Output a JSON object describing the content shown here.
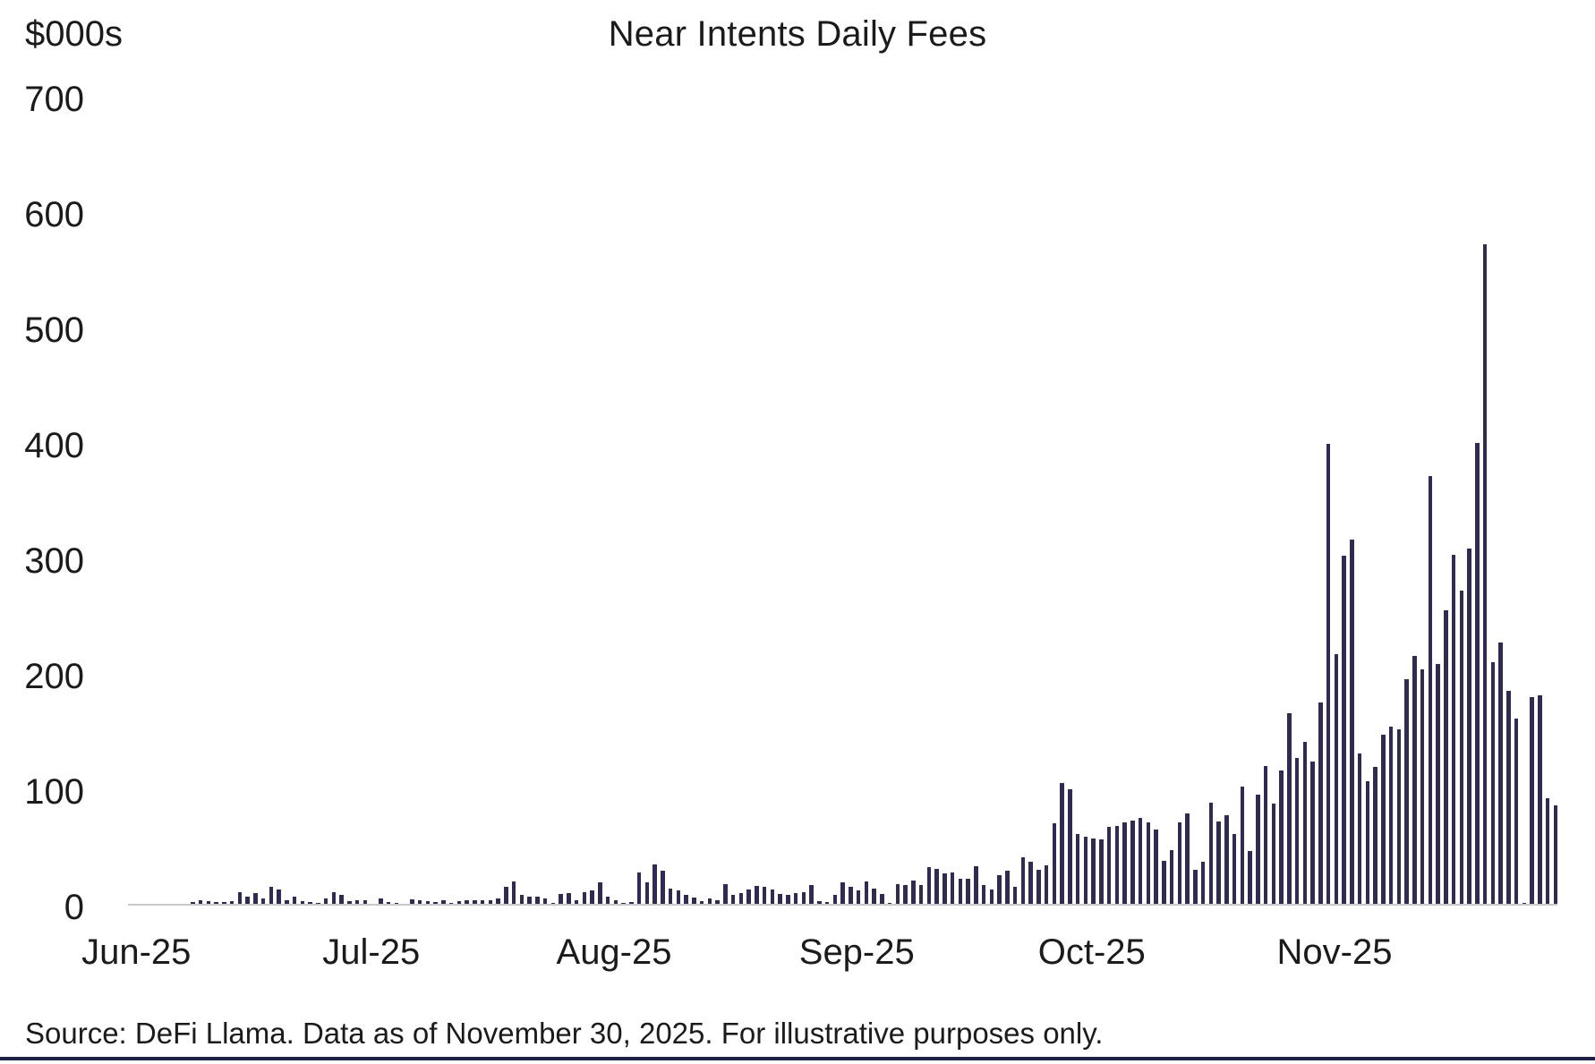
{
  "title": "Near Intents Daily Fees",
  "y_axis_unit": "$000s",
  "source_note": "Source: DeFi Llama. Data as of November 30, 2025. For illustrative purposes only.",
  "colors": {
    "bar": "#302b50",
    "axis_line": "#c9c9c9",
    "text": "#1b1b1b",
    "bottom_rule": "#1e2248",
    "background": "#ffffff"
  },
  "chart_data": {
    "type": "bar",
    "title": "Near Intents Daily Fees",
    "ylabel": "$000s",
    "xlabel": "",
    "ylim": [
      0,
      700
    ],
    "y_ticks": [
      0,
      100,
      200,
      300,
      400,
      500,
      600,
      700
    ],
    "grid": false,
    "legend": false,
    "series_name": "Daily fees ($000s)",
    "x_tick_labels": [
      "Jun-25",
      "Jul-25",
      "Aug-25",
      "Sep-25",
      "Oct-25",
      "Nov-25"
    ],
    "x_tick_day_index": [
      0,
      30,
      61,
      92,
      122,
      153
    ],
    "x_range_days": "Jun 1 2025 - Nov 30 2025",
    "values": [
      0.5,
      0.5,
      0.5,
      0.5,
      0.5,
      0.5,
      0.5,
      1,
      3,
      5,
      4,
      3,
      3,
      4,
      12,
      8,
      11,
      6,
      16,
      14,
      5,
      8,
      4,
      3,
      2,
      6,
      12,
      9,
      4,
      5,
      4.5,
      1.5,
      6,
      3,
      2,
      1,
      5.5,
      5,
      4,
      3.5,
      4.5,
      2,
      4,
      5,
      4.5,
      5,
      4.5,
      6,
      16,
      21,
      9,
      7.5,
      8,
      6,
      2,
      10,
      11,
      5,
      12,
      13,
      20,
      8,
      5,
      2,
      3,
      29,
      20,
      36,
      30,
      15,
      13,
      9,
      7,
      4,
      6,
      5,
      19,
      9,
      11,
      14,
      17,
      16,
      14,
      10,
      9,
      11,
      12,
      18,
      4,
      3,
      9,
      20,
      16,
      13,
      21,
      15,
      10,
      2,
      19,
      18,
      22,
      18,
      33,
      32,
      28,
      29,
      23,
      23,
      34,
      18,
      14,
      26,
      30,
      16,
      42,
      38,
      31,
      35,
      71,
      106,
      101,
      62,
      60,
      58,
      57,
      68,
      69,
      72,
      74,
      76,
      72,
      66,
      39,
      48,
      72,
      80,
      31,
      38,
      89,
      73,
      78,
      62,
      103,
      47,
      96,
      121,
      88,
      117,
      167,
      128,
      142,
      125,
      176,
      400,
      218,
      303,
      317,
      132,
      108,
      120,
      148,
      155,
      153,
      196,
      216,
      205,
      372,
      209,
      256,
      304,
      273,
      309,
      401,
      573,
      211,
      228,
      186,
      162,
      2,
      181,
      182,
      93,
      87
    ]
  }
}
